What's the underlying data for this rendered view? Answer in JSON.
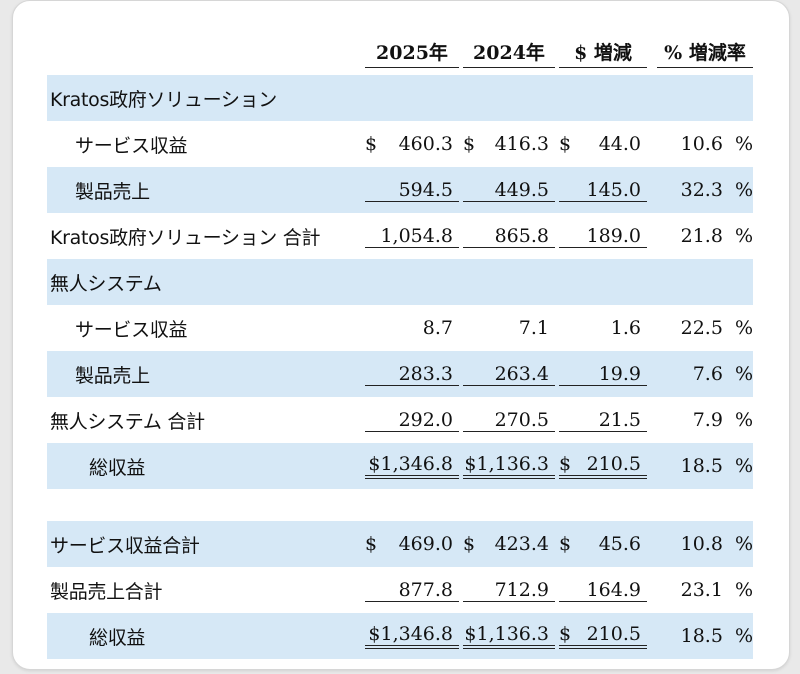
{
  "headers": {
    "y2025": "2025年",
    "y2024": "2024年",
    "change_abs": "$ 増減",
    "change_pct": "% 増減率"
  },
  "rows": [
    {
      "label": "Kratos政府ソリューション"
    },
    {
      "label": "サービス収益",
      "cur": "$",
      "v2025": "460.3",
      "v2024": "416.3",
      "diff": "44.0",
      "pct": "10.6",
      "pct_sign": "%"
    },
    {
      "label": "製品売上",
      "v2025": "594.5",
      "v2024": "449.5",
      "diff": "145.0",
      "pct": "32.3",
      "pct_sign": "%"
    },
    {
      "label": "Kratos政府ソリューション 合計",
      "v2025": "1,054.8",
      "v2024": "865.8",
      "diff": "189.0",
      "pct": "21.8",
      "pct_sign": "%"
    },
    {
      "label": "無人システム"
    },
    {
      "label": "サービス収益",
      "v2025": "8.7",
      "v2024": "7.1",
      "diff": "1.6",
      "pct": "22.5",
      "pct_sign": "%"
    },
    {
      "label": "製品売上",
      "v2025": "283.3",
      "v2024": "263.4",
      "diff": "19.9",
      "pct": "7.6",
      "pct_sign": "%"
    },
    {
      "label": "無人システム 合計",
      "v2025": "292.0",
      "v2024": "270.5",
      "diff": "21.5",
      "pct": "7.9",
      "pct_sign": "%"
    },
    {
      "label": "総収益",
      "v2025": "$1,346.8",
      "v2024": "$1,136.3",
      "cur_diff": "$",
      "diff": "210.5",
      "pct": "18.5",
      "pct_sign": "%"
    },
    {
      "label": "サービス収益合計",
      "cur": "$",
      "v2025": "469.0",
      "v2024": "423.4",
      "diff": "45.6",
      "pct": "10.8",
      "pct_sign": "%"
    },
    {
      "label": "製品売上合計",
      "v2025": "877.8",
      "v2024": "712.9",
      "diff": "164.9",
      "pct": "23.1",
      "pct_sign": "%"
    },
    {
      "label": "総収益",
      "v2025": "$1,346.8",
      "v2024": "$1,136.3",
      "cur_diff": "$",
      "diff": "210.5",
      "pct": "18.5",
      "pct_sign": "%"
    }
  ],
  "colors": {
    "row_shade": "#d6e8f6",
    "rule": "#222222",
    "text": "#111111"
  }
}
